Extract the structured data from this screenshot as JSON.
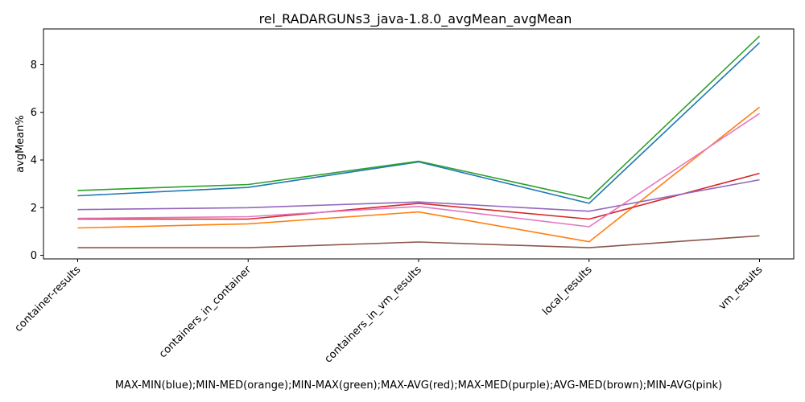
{
  "chart_data": {
    "type": "line",
    "title": "rel_RADARGUNs3_java-1.8.0_avgMean_avgMean",
    "xlabel": "MAX-MIN(blue);MIN-MED(orange);MIN-MAX(green);MAX-AVG(red);MAX-MED(purple);AVG-MED(brown);MIN-AVG(pink)",
    "ylabel": "avgMean%",
    "categories": [
      "container-results",
      "containers_in_container",
      "containers_in_vm_results",
      "local_results",
      "vm_results"
    ],
    "ylim": [
      -0.15,
      9.5
    ],
    "yticks": [
      0,
      2,
      4,
      6,
      8
    ],
    "grid": false,
    "legend": "none",
    "series": [
      {
        "color": "#1f77b4",
        "values": [
          2.5,
          2.85,
          3.92,
          2.18,
          8.92
        ]
      },
      {
        "color": "#ff7f0e",
        "values": [
          1.15,
          1.32,
          1.82,
          0.57,
          6.22
        ]
      },
      {
        "color": "#2ca02c",
        "values": [
          2.72,
          2.97,
          3.95,
          2.38,
          9.2
        ]
      },
      {
        "color": "#d62728",
        "values": [
          1.52,
          1.52,
          2.18,
          1.52,
          3.44
        ]
      },
      {
        "color": "#9467bd",
        "values": [
          1.92,
          2.0,
          2.24,
          1.85,
          3.17
        ]
      },
      {
        "color": "#8c564b",
        "values": [
          0.32,
          0.32,
          0.56,
          0.32,
          0.82
        ]
      },
      {
        "color": "#e377c2",
        "values": [
          1.55,
          1.62,
          2.05,
          1.2,
          5.95
        ]
      }
    ]
  }
}
